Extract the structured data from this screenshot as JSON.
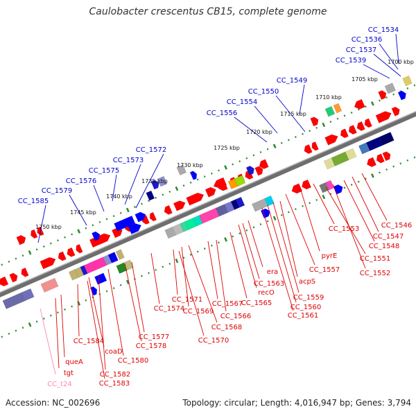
{
  "title": "Caulobacter crescentus CB15, complete genome",
  "footer": {
    "accession": "Accession: NC_002696",
    "summary": "Topology: circular; Length: 4,016,947 bp; Genes: 3,794"
  },
  "colors": {
    "backbone": "#6e6e6e",
    "tick": "#2e8b2e",
    "forward_label": "#0000cc",
    "reverse_label": "#dd0000",
    "rna_label": "#ff88aa"
  },
  "scale_labels": [
    "1700 kbp",
    "1705 kbp",
    "1710 kbp",
    "1715 kbp",
    "1720 kbp",
    "1725 kbp",
    "1730 kbp",
    "1735 kbp",
    "1740 kbp",
    "1745 kbp",
    "1750 kbp"
  ],
  "forward_genes": [
    "CC_1534",
    "CC_1536",
    "CC_1537",
    "CC_1539",
    "CC_1549",
    "CC_1550",
    "CC_1554",
    "CC_1556",
    "CC_1572",
    "CC_1573",
    "CC_1575",
    "CC_1576",
    "CC_1579",
    "CC_1585"
  ],
  "reverse_genes": [
    "CC_1546",
    "CC_1547",
    "CC_1548",
    "CC_1553",
    "CC_1551",
    "CC_1552",
    "pyrE",
    "CC_1557",
    "acpS",
    "era",
    "CC_1563",
    "recO",
    "CC_1559",
    "CC_1560",
    "CC_1561",
    "CC_1565",
    "CC_1567",
    "CC_1566",
    "CC_1571",
    "CC_1569",
    "CC_1568",
    "CC_1574",
    "CC_1570",
    "CC_1577",
    "CC_1578",
    "CC_1580",
    "CC_1584",
    "coaD",
    "queA",
    "tgt",
    "CC_1582",
    "CC_1583"
  ],
  "rna_genes": [
    "CC_t24"
  ]
}
